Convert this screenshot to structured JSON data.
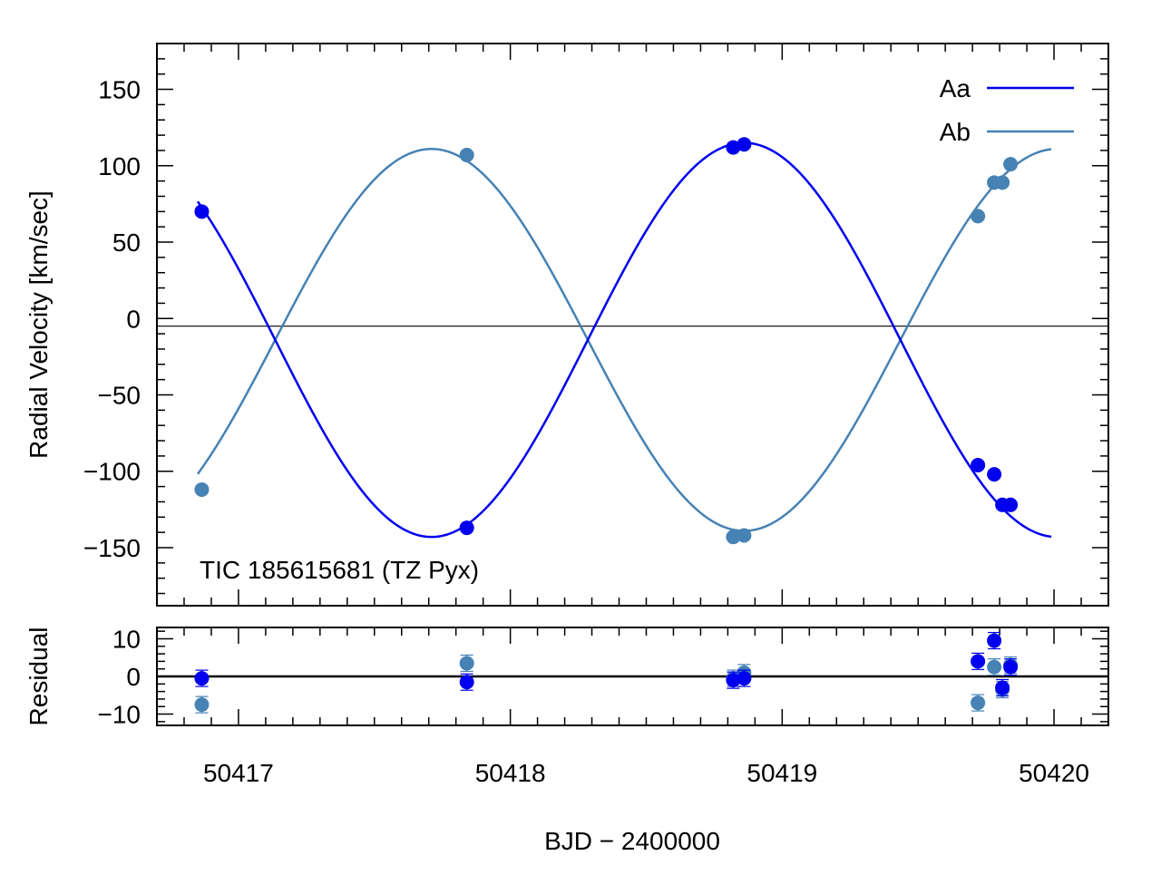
{
  "chart_data": {
    "type": "scatter",
    "title": "TIC 185615681 (TZ Pyx)",
    "xlabel": "BJD − 2400000",
    "ylabel": "Radial Velocity [km/sec]",
    "residual_ylabel": "Residual",
    "xlim": [
      50416.7,
      50420.2
    ],
    "ylim": [
      -188,
      180
    ],
    "residual_ylim": [
      -13,
      13
    ],
    "x_ticks": [
      50417,
      50418,
      50419,
      50420
    ],
    "x_tick_labels": [
      "50417",
      "50418",
      "50419",
      "50420"
    ],
    "y_ticks": [
      -150,
      -100,
      -50,
      0,
      50,
      100,
      150
    ],
    "y_tick_labels": [
      "−150",
      "−100",
      "−50",
      "0",
      "50",
      "100",
      "150"
    ],
    "residual_ticks": [
      -10,
      0,
      10
    ],
    "residual_tick_labels": [
      "−10",
      "0",
      "10"
    ],
    "systemic_velocity": -5,
    "grid": false,
    "legend_position": "top-right",
    "model": {
      "period": 2.3,
      "t_max_aa": 50418.86,
      "gamma": -14,
      "k_aa": 129,
      "k_ab": 125,
      "t_start": 50416.85,
      "t_end": 50419.99
    },
    "series": [
      {
        "name": "Aa",
        "color": "#0000ee",
        "points": [
          {
            "x": 50416.865,
            "y": 70
          },
          {
            "x": 50417.84,
            "y": -137
          },
          {
            "x": 50418.82,
            "y": 112
          },
          {
            "x": 50418.86,
            "y": 114
          },
          {
            "x": 50419.72,
            "y": -96
          },
          {
            "x": 50419.78,
            "y": -102
          },
          {
            "x": 50419.81,
            "y": -122
          },
          {
            "x": 50419.84,
            "y": -122
          }
        ],
        "residuals": [
          {
            "x": 50416.865,
            "y": -0.5
          },
          {
            "x": 50417.84,
            "y": -1.5
          },
          {
            "x": 50418.82,
            "y": -1.0
          },
          {
            "x": 50418.86,
            "y": -0.5
          },
          {
            "x": 50419.72,
            "y": 4.0
          },
          {
            "x": 50419.78,
            "y": 9.5
          },
          {
            "x": 50419.81,
            "y": -3.0
          },
          {
            "x": 50419.84,
            "y": 2.5
          }
        ]
      },
      {
        "name": "Ab",
        "color": "#4682b4",
        "points": [
          {
            "x": 50416.865,
            "y": -112
          },
          {
            "x": 50417.84,
            "y": 107
          },
          {
            "x": 50418.82,
            "y": -143
          },
          {
            "x": 50418.86,
            "y": -142
          },
          {
            "x": 50419.72,
            "y": 67
          },
          {
            "x": 50419.78,
            "y": 89
          },
          {
            "x": 50419.81,
            "y": 89
          },
          {
            "x": 50419.84,
            "y": 101
          }
        ],
        "residuals": [
          {
            "x": 50416.865,
            "y": -7.5
          },
          {
            "x": 50417.84,
            "y": 3.5
          },
          {
            "x": 50418.82,
            "y": -0.5
          },
          {
            "x": 50418.86,
            "y": 1.0
          },
          {
            "x": 50419.72,
            "y": -7.0
          },
          {
            "x": 50419.78,
            "y": 2.5
          },
          {
            "x": 50419.81,
            "y": -3.5
          },
          {
            "x": 50419.84,
            "y": 3.0
          }
        ]
      }
    ]
  }
}
